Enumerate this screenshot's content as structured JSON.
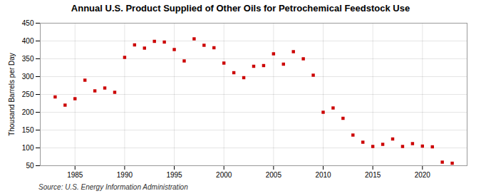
{
  "chart_data": {
    "type": "scatter",
    "title": "Annual U.S. Product Supplied of Other Oils for Petrochemical Feedstock Use",
    "ylabel": "Thousand Barrels per Day",
    "annotations": [
      "Source: U.S. Energy Information Administration"
    ],
    "color": "#cc0000",
    "marker": "square",
    "grid": true,
    "xlim": [
      1981.5,
      2024.5
    ],
    "xticks": [
      1985,
      1990,
      1995,
      2000,
      2005,
      2010,
      2015,
      2020
    ],
    "ylim": [
      50,
      450
    ],
    "yticks": [
      50,
      100,
      150,
      200,
      250,
      300,
      350,
      400,
      450
    ],
    "x": [
      1983,
      1984,
      1985,
      1986,
      1987,
      1988,
      1989,
      1990,
      1991,
      1992,
      1993,
      1994,
      1995,
      1996,
      1997,
      1998,
      1999,
      2000,
      2001,
      2002,
      2003,
      2004,
      2005,
      2006,
      2007,
      2008,
      2009,
      2010,
      2011,
      2012,
      2013,
      2014,
      2015,
      2016,
      2017,
      2018,
      2019,
      2020,
      2021,
      2022,
      2023
    ],
    "values": [
      243,
      220,
      238,
      290,
      260,
      268,
      256,
      354,
      389,
      380,
      399,
      397,
      376,
      344,
      406,
      388,
      381,
      338,
      311,
      297,
      329,
      331,
      364,
      335,
      370,
      350,
      304,
      200,
      212,
      183,
      136,
      116,
      104,
      110,
      125,
      104,
      112,
      105,
      103,
      60,
      57
    ]
  }
}
